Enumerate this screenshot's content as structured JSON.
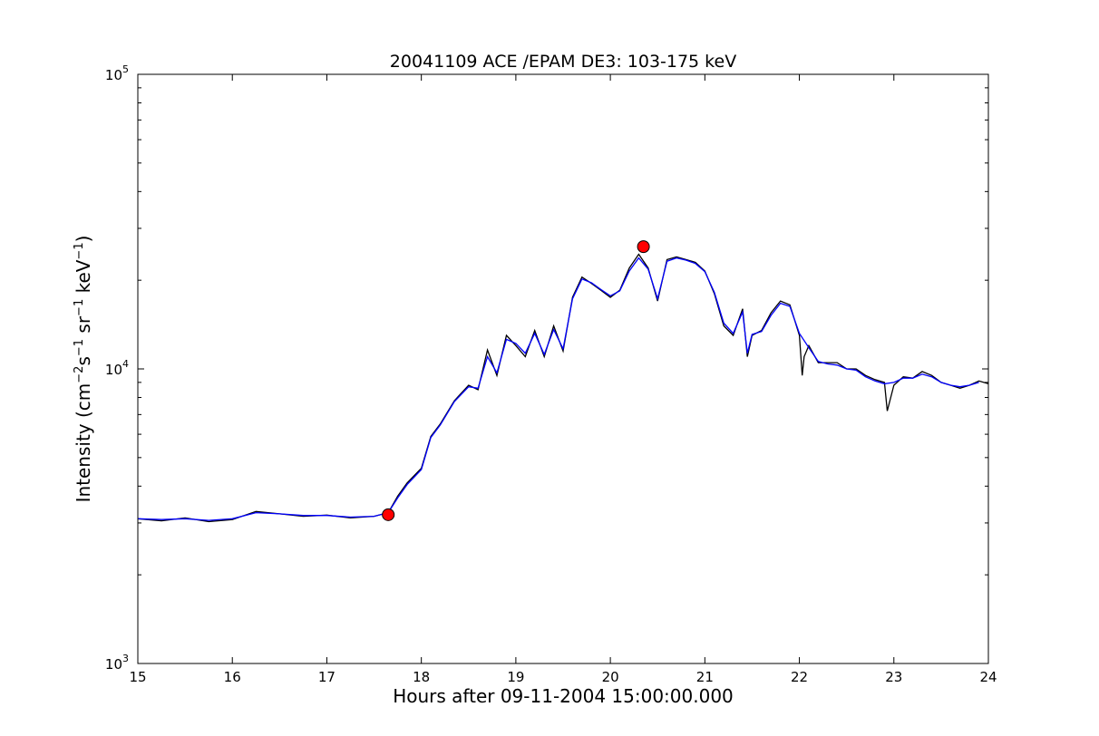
{
  "chart_data": {
    "type": "line",
    "title": "20041109 ACE /EPAM DE3: 103-175 keV",
    "xlabel": "Hours after 09-11-2004 15:00:00.000",
    "ylabel": {
      "prefix": "Intensity (cm",
      "parts": [
        {
          "text": "−2",
          "sup": true
        },
        {
          "text": "s",
          "sup": false
        },
        {
          "text": "−1",
          "sup": true
        },
        {
          "text": " sr",
          "sup": false
        },
        {
          "text": "−1",
          "sup": true
        },
        {
          "text": " keV",
          "sup": false
        },
        {
          "text": "−1",
          "sup": true
        },
        {
          "text": ")",
          "sup": false
        }
      ]
    },
    "xlim": [
      15,
      24
    ],
    "ylim": [
      1000,
      100000
    ],
    "yscale": "log",
    "grid": false,
    "x_ticks": [
      "15",
      "16",
      "17",
      "18",
      "19",
      "20",
      "21",
      "22",
      "23",
      "24"
    ],
    "y_ticks": [
      {
        "value": 1000,
        "base": "10",
        "exp": "3"
      },
      {
        "value": 10000,
        "base": "10",
        "exp": "4"
      },
      {
        "value": 100000,
        "base": "10",
        "exp": "5"
      }
    ],
    "series": [
      {
        "color": "#000000",
        "x": [
          15.0,
          15.25,
          15.5,
          15.75,
          16.0,
          16.25,
          16.5,
          16.75,
          17.0,
          17.25,
          17.5,
          17.65,
          17.75,
          17.85,
          18.0,
          18.1,
          18.2,
          18.35,
          18.5,
          18.6,
          18.7,
          18.8,
          18.9,
          19.0,
          19.1,
          19.2,
          19.3,
          19.4,
          19.5,
          19.6,
          19.7,
          19.8,
          19.9,
          20.0,
          20.1,
          20.2,
          20.3,
          20.4,
          20.5,
          20.6,
          20.7,
          20.8,
          20.9,
          21.0,
          21.1,
          21.2,
          21.3,
          21.4,
          21.45,
          21.5,
          21.6,
          21.7,
          21.8,
          21.9,
          22.0,
          22.03,
          22.05,
          22.1,
          22.2,
          22.3,
          22.4,
          22.5,
          22.55,
          22.6,
          22.7,
          22.8,
          22.9,
          22.93,
          23.0,
          23.1,
          23.2,
          23.3,
          23.4,
          23.5,
          23.6,
          23.7,
          23.8,
          23.9,
          24.0
        ],
        "y": [
          3100,
          3050,
          3120,
          3030,
          3080,
          3280,
          3220,
          3160,
          3190,
          3120,
          3160,
          3250,
          3700,
          4100,
          4600,
          5900,
          6500,
          7800,
          8800,
          8500,
          11600,
          9500,
          13000,
          12000,
          11000,
          13500,
          11000,
          14000,
          11500,
          17500,
          20500,
          19500,
          18500,
          17500,
          18500,
          22000,
          24500,
          22000,
          17000,
          23500,
          24000,
          23500,
          23000,
          21500,
          18000,
          14000,
          13000,
          16000,
          11000,
          13000,
          13500,
          15500,
          17000,
          16500,
          13000,
          9500,
          11000,
          12000,
          10500,
          10500,
          10500,
          10000,
          10000,
          10000,
          9500,
          9200,
          9000,
          7200,
          8800,
          9400,
          9300,
          9800,
          9500,
          9000,
          8800,
          8600,
          8800,
          9100,
          8900
        ]
      },
      {
        "color": "#0000ff",
        "x": [
          15.0,
          15.25,
          15.5,
          15.75,
          16.0,
          16.25,
          16.5,
          16.75,
          17.0,
          17.25,
          17.5,
          17.65,
          17.75,
          17.85,
          18.0,
          18.1,
          18.2,
          18.35,
          18.5,
          18.6,
          18.7,
          18.8,
          18.9,
          19.0,
          19.1,
          19.2,
          19.3,
          19.4,
          19.5,
          19.6,
          19.7,
          19.8,
          19.9,
          20.0,
          20.1,
          20.2,
          20.3,
          20.4,
          20.5,
          20.6,
          20.7,
          20.8,
          20.9,
          21.0,
          21.1,
          21.2,
          21.3,
          21.4,
          21.45,
          21.5,
          21.6,
          21.7,
          21.8,
          21.9,
          22.0,
          22.1,
          22.2,
          22.3,
          22.4,
          22.5,
          22.6,
          22.7,
          22.8,
          22.9,
          23.0,
          23.1,
          23.2,
          23.3,
          23.4,
          23.5,
          23.6,
          23.7,
          23.8,
          23.9
        ],
        "y": [
          3100,
          3080,
          3100,
          3060,
          3100,
          3250,
          3220,
          3180,
          3180,
          3140,
          3160,
          3250,
          3650,
          4050,
          4550,
          5850,
          6450,
          7750,
          8700,
          8600,
          11000,
          9700,
          12600,
          12200,
          11300,
          13200,
          11200,
          13600,
          11700,
          17300,
          20200,
          19600,
          18600,
          17700,
          18400,
          21500,
          23800,
          21800,
          17300,
          23200,
          23800,
          23400,
          22800,
          21400,
          18200,
          14300,
          13200,
          15600,
          11300,
          13100,
          13400,
          15200,
          16700,
          16300,
          13200,
          11800,
          10600,
          10400,
          10300,
          10000,
          9900,
          9400,
          9100,
          8900,
          9000,
          9300,
          9300,
          9600,
          9400,
          9000,
          8800,
          8700,
          8800,
          9000
        ]
      }
    ],
    "markers": [
      {
        "x": 17.65,
        "y": 3200,
        "color": "#ff0000"
      },
      {
        "x": 20.35,
        "y": 26000,
        "color": "#ff0000"
      }
    ]
  }
}
